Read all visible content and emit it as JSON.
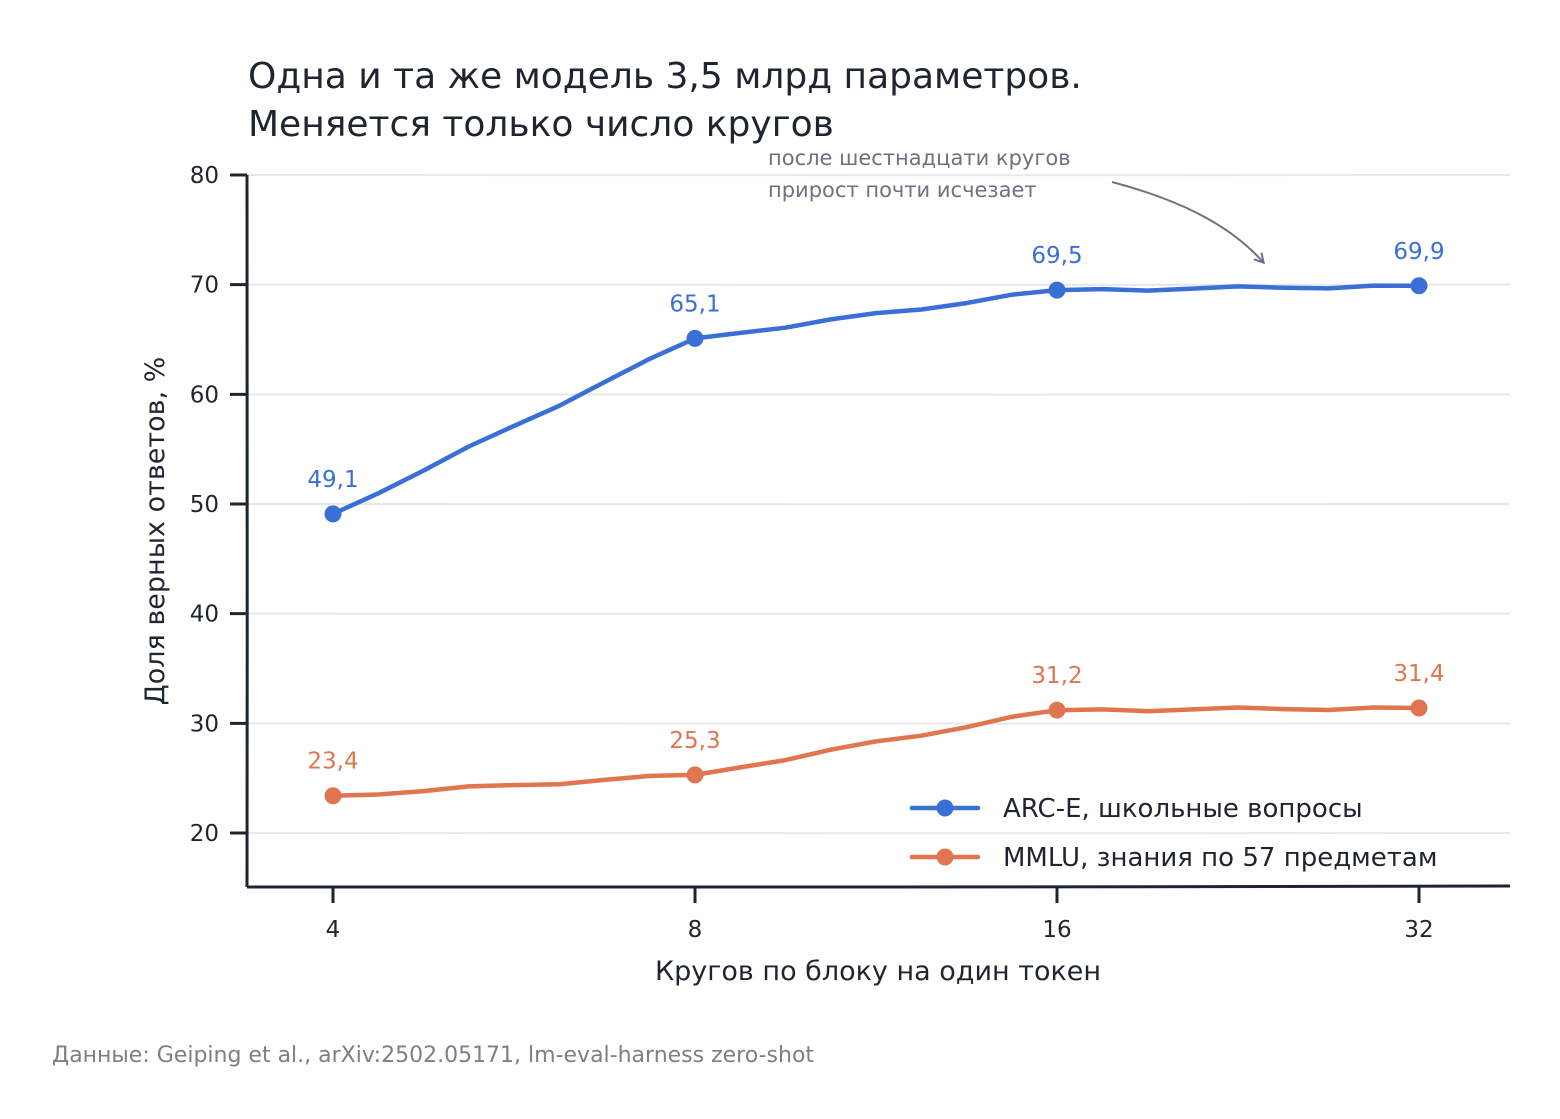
{
  "chart_data": {
    "type": "line",
    "title_lines": [
      "Одна и та же модель 3,5 млрд параметров.",
      "Меняется только число кругов"
    ],
    "xlabel": "Кругов по блоку на один токен",
    "ylabel": "Доля верных ответов, %",
    "x_scale": "log2",
    "categories": [
      "4",
      "8",
      "16",
      "32"
    ],
    "x": [
      4,
      8,
      16,
      32
    ],
    "ylim": [
      15,
      80
    ],
    "yticks": [
      20,
      30,
      40,
      50,
      60,
      70,
      80
    ],
    "grid": "horizontal",
    "legend_position": "bottom-right",
    "series": [
      {
        "name": "ARC-E, школьные вопросы",
        "color": "#3a6fd8",
        "values": [
          49.1,
          65.1,
          69.5,
          69.9
        ],
        "labels": [
          "49,1",
          "65,1",
          "69,5",
          "69,9"
        ]
      },
      {
        "name": "MMLU, знания по 57 предметам",
        "color": "#e07550",
        "values": [
          23.4,
          25.3,
          31.2,
          31.4
        ],
        "labels": [
          "23,4",
          "25,3",
          "31,2",
          "31,4"
        ]
      }
    ],
    "annotation": {
      "lines": [
        "после шестнадцати кругов",
        "прирост почти исчезает"
      ],
      "color": "#6b7280"
    },
    "source": "Данные: Geiping et al., arXiv:2502.05171, lm-eval-harness zero-shot"
  }
}
